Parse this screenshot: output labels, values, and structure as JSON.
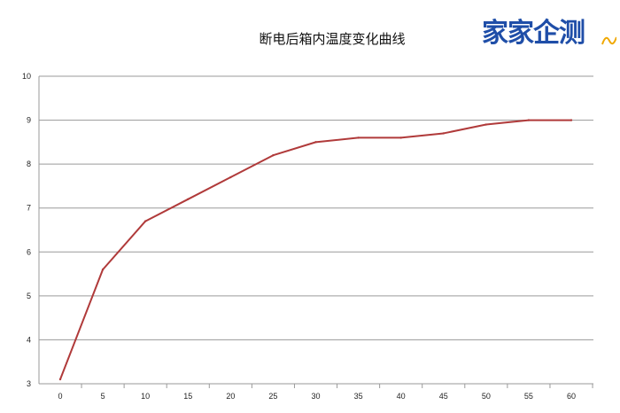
{
  "logo": {
    "text": "家家企测",
    "accent_color": "#f0a800",
    "color": "#1f4ea8"
  },
  "chart_data": {
    "type": "line",
    "title": "断电后箱内温度变化曲线",
    "xlabel": "",
    "ylabel": "",
    "x": [
      0,
      5,
      10,
      15,
      20,
      25,
      30,
      35,
      40,
      45,
      50,
      55,
      60
    ],
    "series": [
      {
        "values": [
          3.1,
          5.6,
          6.7,
          7.2,
          7.7,
          8.2,
          8.5,
          8.6,
          8.6,
          8.7,
          8.9,
          9.0,
          9.0
        ],
        "color": "#b03a3a"
      }
    ],
    "xlim": [
      0,
      60
    ],
    "ylim": [
      3,
      10
    ],
    "yticks": [
      3,
      4,
      5,
      6,
      7,
      8,
      9,
      10
    ],
    "xticks": [
      0,
      5,
      10,
      15,
      20,
      25,
      30,
      35,
      40,
      45,
      50,
      55,
      60
    ],
    "grid": true,
    "legend": "none"
  }
}
